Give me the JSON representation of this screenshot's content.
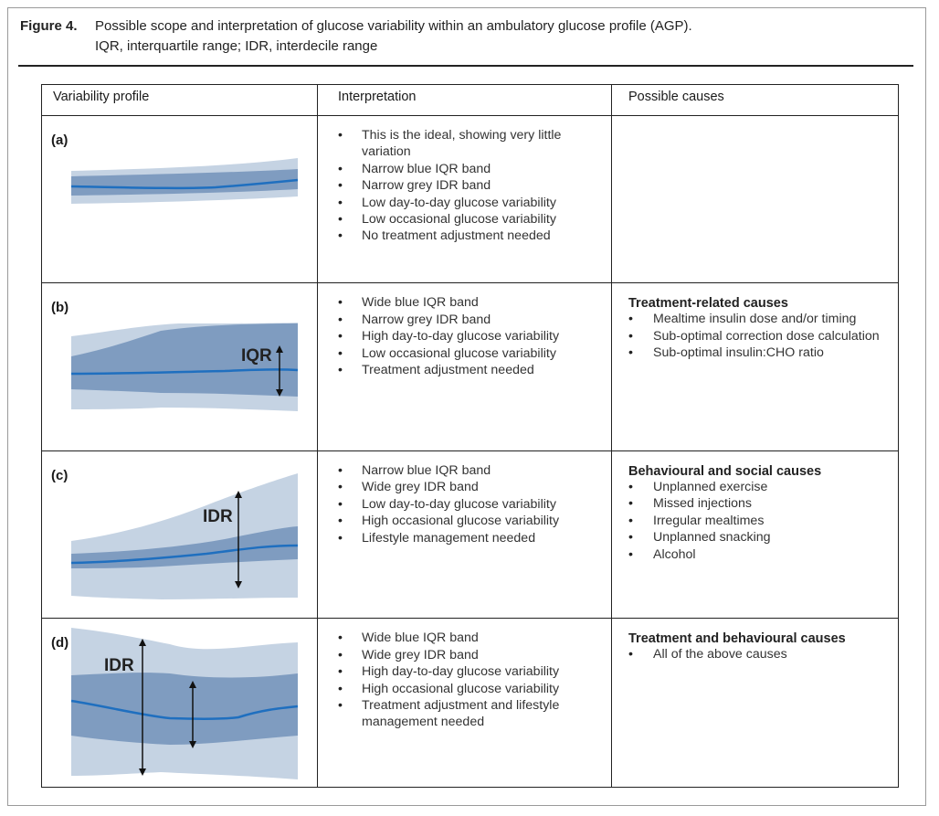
{
  "caption": {
    "label": "Figure 4.",
    "line1": "Possible scope and interpretation of glucose variability within an ambulatory glucose profile (AGP).",
    "line2": "IQR, interquartile range; IDR, interdecile range"
  },
  "table": {
    "headers": [
      "Variability profile",
      "Interpretation",
      "Possible causes"
    ],
    "rows": [
      {
        "label": "(a)",
        "annotations": [],
        "interpretation": [
          "This is the ideal, showing very little variation",
          "Narrow blue IQR band",
          "Narrow grey IDR band",
          "Low day-to-day glucose variability",
          "Low occasional glucose variability",
          "No treatment adjustment needed"
        ],
        "causes_heading": "",
        "causes": []
      },
      {
        "label": "(b)",
        "annotations": [
          "IQR"
        ],
        "interpretation": [
          "Wide blue IQR band",
          "Narrow grey IDR band",
          "High day-to-day glucose variability",
          "Low occasional glucose variability",
          "Treatment adjustment needed"
        ],
        "causes_heading": "Treatment-related causes",
        "causes": [
          "Mealtime insulin dose and/or timing",
          "Sub-optimal correction dose calculation",
          "Sub-optimal insulin:CHO ratio"
        ]
      },
      {
        "label": "(c)",
        "annotations": [
          "IDR"
        ],
        "interpretation": [
          "Narrow blue IQR band",
          "Wide grey IDR band",
          "Low day-to-day glucose variability",
          "High occasional glucose variability",
          "Lifestyle management needed"
        ],
        "causes_heading": "Behavioural and social causes",
        "causes": [
          "Unplanned exercise",
          "Missed injections",
          "Irregular mealtimes",
          "Unplanned snacking",
          "Alcohol"
        ]
      },
      {
        "label": "(d)",
        "annotations": [
          "IDR"
        ],
        "interpretation": [
          "Wide blue IQR band",
          "Wide grey IDR band",
          "High day-to-day glucose variability",
          "High occasional glucose variability",
          "Treatment adjustment and lifestyle management needed"
        ],
        "causes_heading": "Treatment and behavioural causes",
        "causes": [
          "All of the above causes"
        ]
      }
    ]
  },
  "colors": {
    "idr_band": "#c5d3e3",
    "iqr_band": "#7f9cc0",
    "median_line": "#1f6fbf"
  }
}
